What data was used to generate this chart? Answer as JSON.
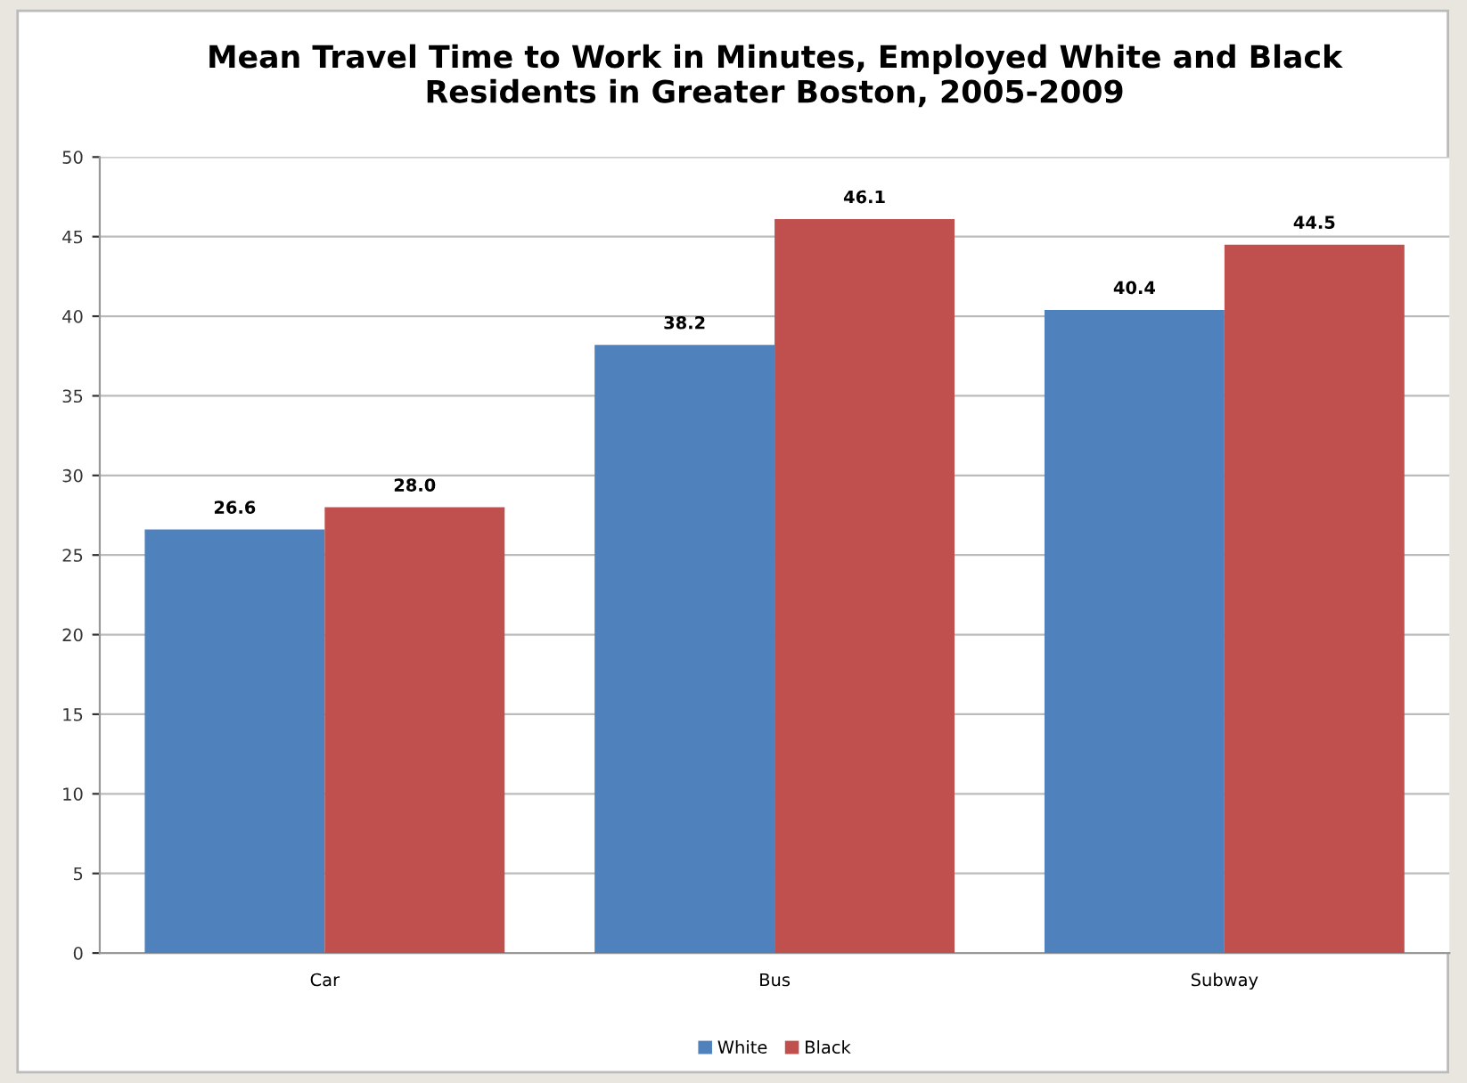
{
  "chart_data": {
    "type": "bar",
    "title": "Mean Travel Time to Work in Minutes, Employed White and Black\nResidents in Greater Boston, 2005-2009",
    "categories": [
      "Car",
      "Bus",
      "Subway"
    ],
    "series": [
      {
        "name": "White",
        "color": "#4f81bd",
        "values": [
          26.6,
          38.2,
          40.4
        ],
        "value_labels": [
          "26.6",
          "38.2",
          "40.4"
        ]
      },
      {
        "name": "Black",
        "color": "#c0504d",
        "values": [
          28.0,
          46.1,
          44.5
        ],
        "value_labels": [
          "28.0",
          "46.1",
          "44.5"
        ]
      }
    ],
    "ylim": [
      0,
      50
    ],
    "yticks": [
      0,
      5,
      10,
      15,
      20,
      25,
      30,
      35,
      40,
      45,
      50
    ],
    "grid": "y",
    "legend": "bottom"
  }
}
